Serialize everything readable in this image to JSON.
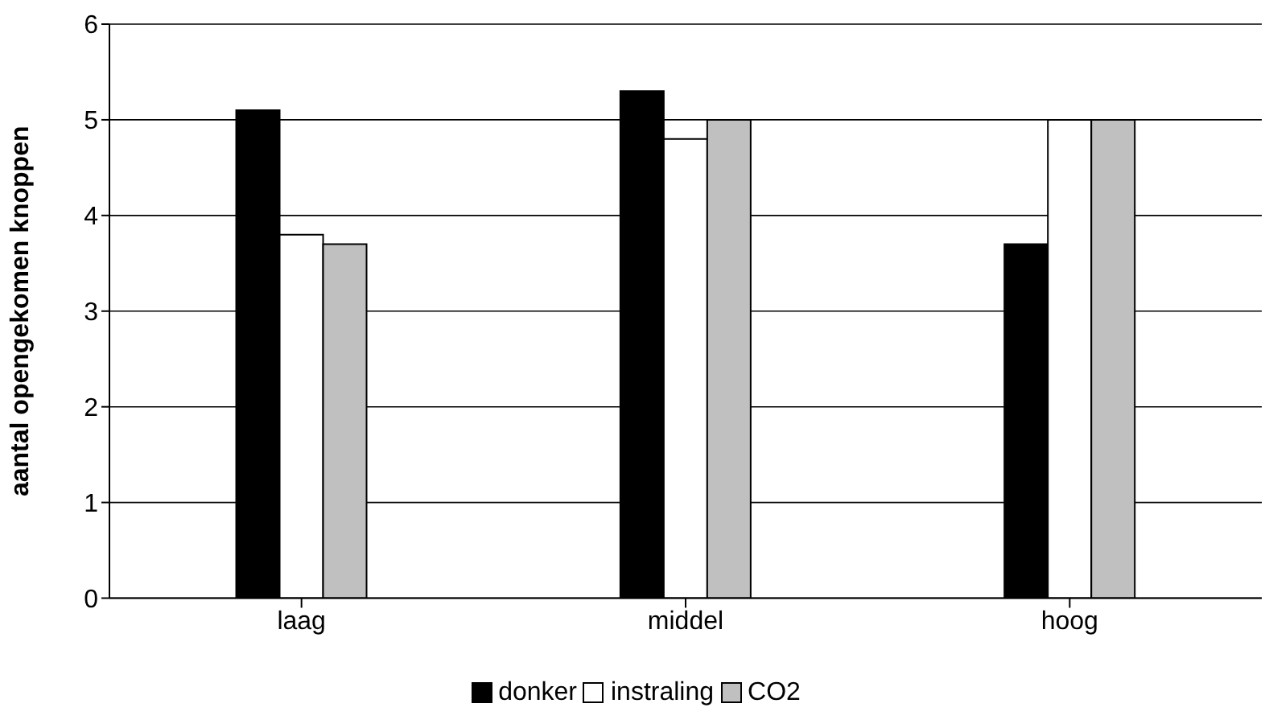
{
  "chart_data": {
    "type": "bar",
    "ylabel": "aantal opengekomen knoppen",
    "categories": [
      "laag",
      "middel",
      "hoog"
    ],
    "series": [
      {
        "name": "donker",
        "color": "#000000",
        "values": [
          5.1,
          5.3,
          3.7
        ]
      },
      {
        "name": "instraling",
        "color": "#ffffff",
        "values": [
          3.8,
          4.8,
          5.0
        ]
      },
      {
        "name": "CO2",
        "color": "#c0c0c0",
        "values": [
          3.7,
          5.0,
          5.0
        ]
      }
    ],
    "ylim": [
      0,
      6
    ],
    "yticks": [
      0,
      1,
      2,
      3,
      4,
      5,
      6
    ],
    "grid": "y",
    "legend": "bottom"
  }
}
